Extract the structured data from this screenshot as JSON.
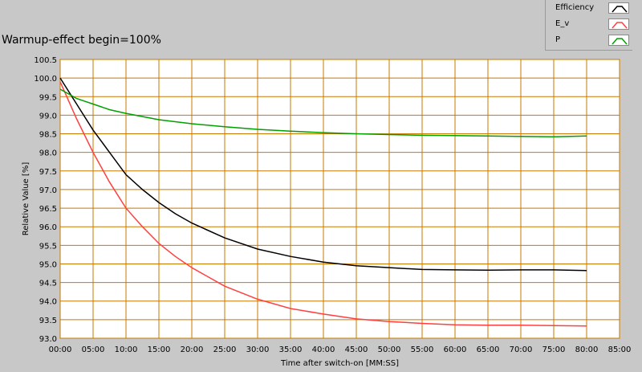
{
  "page": {
    "title": "Warmup-effect begin=100%"
  },
  "chart_data": {
    "type": "line",
    "title": "Warmup-effect begin=100%",
    "xlabel": "Time after switch-on [MM:SS]",
    "ylabel": "Relative Value [%]",
    "xlim": [
      0,
      85
    ],
    "ylim": [
      93.0,
      100.5
    ],
    "x_ticks": [
      "00:00",
      "05:00",
      "10:00",
      "15:00",
      "20:00",
      "25:00",
      "30:00",
      "35:00",
      "40:00",
      "45:00",
      "50:00",
      "55:00",
      "60:00",
      "65:00",
      "70:00",
      "75:00",
      "80:00",
      "85:00"
    ],
    "y_ticks": [
      "100.5",
      "100.0",
      "99.5",
      "99.0",
      "98.5",
      "98.0",
      "97.5",
      "97.0",
      "96.5",
      "96.0",
      "95.5",
      "95.0",
      "94.5",
      "94.0",
      "93.5",
      "93.0"
    ],
    "grid": true,
    "legend_position": "top-right",
    "x_units": "minutes",
    "series": [
      {
        "name": "Efficiency",
        "color": "#000000",
        "x": [
          0,
          2.5,
          5,
          7.5,
          10,
          12.5,
          15,
          17.5,
          20,
          25,
          30,
          35,
          40,
          45,
          50,
          55,
          60,
          65,
          70,
          75,
          80
        ],
        "y": [
          100.0,
          99.3,
          98.6,
          98.0,
          97.4,
          97.0,
          96.65,
          96.35,
          96.1,
          95.7,
          95.4,
          95.2,
          95.05,
          94.95,
          94.9,
          94.85,
          94.84,
          94.83,
          94.84,
          94.84,
          94.82
        ]
      },
      {
        "name": "E_v",
        "color": "#ff4040",
        "x": [
          0,
          2.5,
          5,
          7.5,
          10,
          12.5,
          15,
          17.5,
          20,
          25,
          30,
          35,
          40,
          45,
          50,
          55,
          60,
          65,
          70,
          75,
          80
        ],
        "y": [
          99.9,
          98.9,
          98.0,
          97.2,
          96.5,
          96.0,
          95.55,
          95.2,
          94.9,
          94.4,
          94.05,
          93.8,
          93.65,
          93.52,
          93.45,
          93.4,
          93.36,
          93.35,
          93.35,
          93.34,
          93.33
        ]
      },
      {
        "name": "P",
        "color": "#00a000",
        "x": [
          0,
          2.5,
          5,
          7.5,
          10,
          15,
          20,
          25,
          30,
          35,
          40,
          45,
          50,
          55,
          60,
          65,
          70,
          75,
          80
        ],
        "y": [
          99.7,
          99.45,
          99.3,
          99.15,
          99.05,
          98.88,
          98.77,
          98.69,
          98.62,
          98.57,
          98.53,
          98.5,
          98.48,
          98.46,
          98.45,
          98.44,
          98.43,
          98.42,
          98.44
        ]
      }
    ]
  }
}
